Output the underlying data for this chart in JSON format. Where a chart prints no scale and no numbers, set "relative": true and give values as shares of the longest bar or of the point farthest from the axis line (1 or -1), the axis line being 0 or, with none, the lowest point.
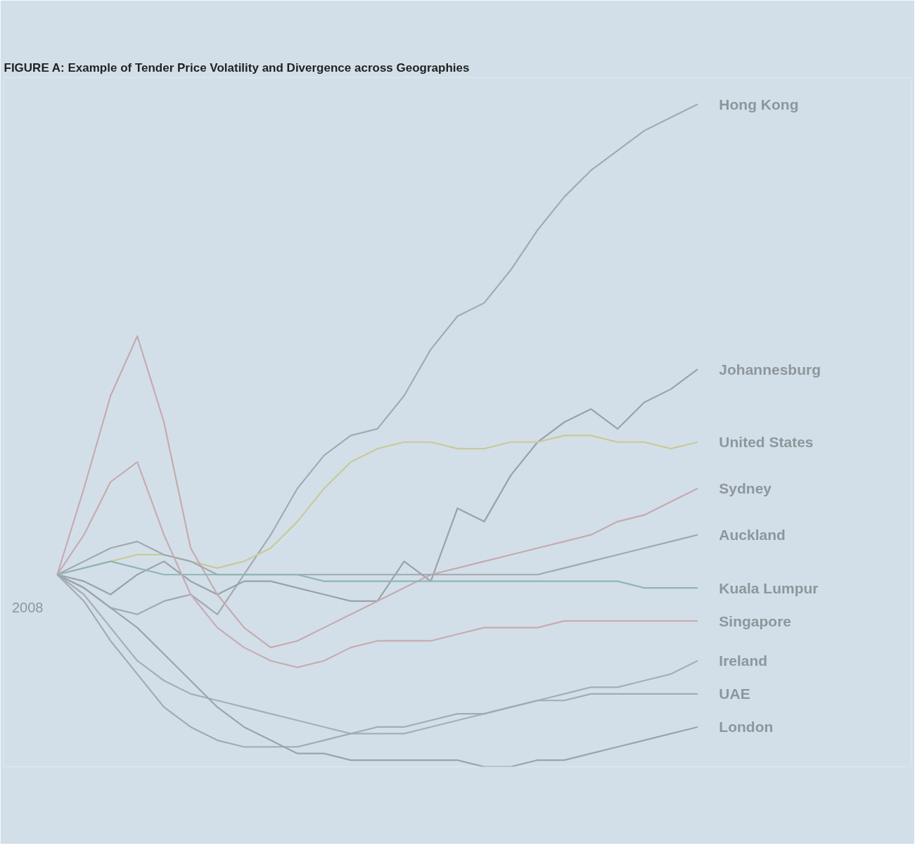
{
  "chart_data": {
    "type": "line",
    "title": "FIGURE A: Example of Tender Price Volatility and Divergence across Geographies",
    "relative": true,
    "categories": [
      null,
      null,
      null,
      null,
      null,
      null,
      null,
      null,
      null,
      null,
      null,
      null,
      null,
      null,
      null,
      null,
      null,
      null,
      null,
      null,
      null,
      null,
      null,
      null,
      null
    ],
    "annotations": [
      "2008"
    ],
    "series": [
      {
        "name": "Hong Kong",
        "color": "#a3aab0",
        "values": [
          0.29,
          0.27,
          0.24,
          0.23,
          0.25,
          0.26,
          0.23,
          0.29,
          0.35,
          0.42,
          0.47,
          0.5,
          0.51,
          0.56,
          0.63,
          0.68,
          0.7,
          0.75,
          0.81,
          0.86,
          0.9,
          0.93,
          0.96,
          0.98,
          1.0
        ]
      },
      {
        "name": "Johannesburg",
        "color": "#9aa2a9",
        "values": [
          0.29,
          0.28,
          0.26,
          0.29,
          0.31,
          0.28,
          0.26,
          0.28,
          0.28,
          0.27,
          0.26,
          0.25,
          0.25,
          0.31,
          0.28,
          0.39,
          0.37,
          0.44,
          0.49,
          0.52,
          0.54,
          0.51,
          0.55,
          0.57,
          0.6
        ]
      },
      {
        "name": "United States",
        "color": "#c9c99a",
        "values": [
          0.29,
          0.3,
          0.31,
          0.32,
          0.32,
          0.31,
          0.3,
          0.31,
          0.33,
          0.37,
          0.42,
          0.46,
          0.48,
          0.49,
          0.49,
          0.48,
          0.48,
          0.49,
          0.49,
          0.5,
          0.5,
          0.49,
          0.49,
          0.48,
          0.49
        ]
      },
      {
        "name": "Sydney",
        "color": "#c4abb0",
        "values": [
          0.29,
          0.42,
          0.56,
          0.65,
          0.52,
          0.33,
          0.26,
          0.21,
          0.18,
          0.19,
          0.21,
          0.23,
          0.25,
          0.27,
          0.29,
          0.3,
          0.31,
          0.32,
          0.33,
          0.34,
          0.35,
          0.37,
          0.38,
          0.4,
          0.42
        ]
      },
      {
        "name": "Auckland",
        "color": "#a0a8ae",
        "values": [
          0.29,
          0.31,
          0.33,
          0.34,
          0.32,
          0.31,
          0.29,
          0.29,
          0.29,
          0.29,
          0.29,
          0.29,
          0.29,
          0.29,
          0.29,
          0.29,
          0.29,
          0.29,
          0.29,
          0.3,
          0.31,
          0.32,
          0.33,
          0.34,
          0.35
        ]
      },
      {
        "name": "Kuala Lumpur",
        "color": "#8fb6b6",
        "values": [
          0.29,
          0.3,
          0.31,
          0.3,
          0.29,
          0.29,
          0.29,
          0.29,
          0.29,
          0.29,
          0.28,
          0.28,
          0.28,
          0.28,
          0.28,
          0.28,
          0.28,
          0.28,
          0.28,
          0.28,
          0.28,
          0.28,
          0.27,
          0.27,
          0.27
        ]
      },
      {
        "name": "Singapore",
        "color": "#c6acb2",
        "values": [
          0.29,
          0.35,
          0.43,
          0.46,
          0.35,
          0.26,
          0.21,
          0.18,
          0.16,
          0.15,
          0.16,
          0.18,
          0.19,
          0.19,
          0.19,
          0.2,
          0.21,
          0.21,
          0.21,
          0.22,
          0.22,
          0.22,
          0.22,
          0.22,
          0.22
        ]
      },
      {
        "name": "Ireland",
        "color": "#a7aeb4",
        "values": [
          0.29,
          0.26,
          0.21,
          0.16,
          0.13,
          0.11,
          0.1,
          0.09,
          0.08,
          0.07,
          0.06,
          0.05,
          0.05,
          0.05,
          0.06,
          0.07,
          0.08,
          0.09,
          0.1,
          0.11,
          0.12,
          0.12,
          0.13,
          0.14,
          0.16
        ]
      },
      {
        "name": "UAE",
        "color": "#a3abb1",
        "values": [
          0.29,
          0.25,
          0.19,
          0.14,
          0.09,
          0.06,
          0.04,
          0.03,
          0.03,
          0.03,
          0.04,
          0.05,
          0.06,
          0.06,
          0.07,
          0.08,
          0.08,
          0.09,
          0.1,
          0.1,
          0.11,
          0.11,
          0.11,
          0.11,
          0.11
        ]
      },
      {
        "name": "London",
        "color": "#9ca4aa",
        "values": [
          0.29,
          0.27,
          0.24,
          0.21,
          0.17,
          0.13,
          0.09,
          0.06,
          0.04,
          0.02,
          0.02,
          0.01,
          0.01,
          0.01,
          0.01,
          0.01,
          0.0,
          0.0,
          0.01,
          0.01,
          0.02,
          0.03,
          0.04,
          0.05,
          0.06
        ]
      }
    ]
  }
}
